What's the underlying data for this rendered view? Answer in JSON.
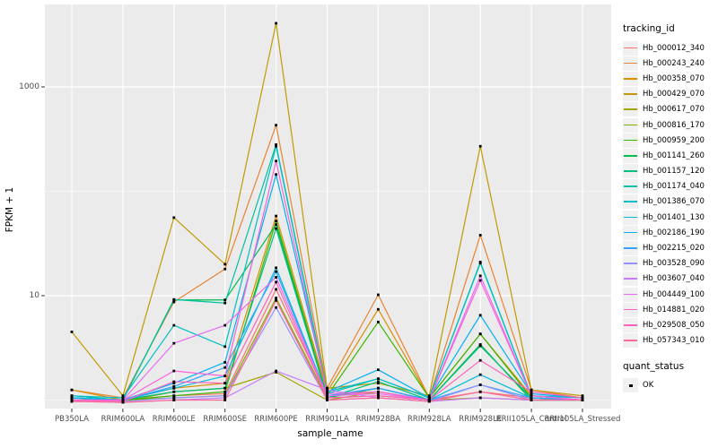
{
  "y_axis": {
    "title": "FPKM + 1"
  },
  "x_axis": {
    "title": "sample_name"
  },
  "legend": {
    "tracking_title": "tracking_id",
    "quant_title": "quant_status",
    "quant_label": "OK"
  },
  "colors": {
    "panel": "#EBEBEB",
    "grid": "#FFFFFF",
    "tick": "#333333",
    "point": "#000000",
    "tick_text": "#4D4D4D"
  },
  "chart_data": {
    "type": "line",
    "title": "",
    "xlabel": "sample_name",
    "ylabel": "FPKM + 1",
    "y_scale": "log10",
    "y_ticks": [
      10,
      1000
    ],
    "y_minor_ticks": [
      1,
      100
    ],
    "ylim": [
      0.85,
      6200
    ],
    "grid": "on",
    "legend_position": "right",
    "point_marker": "black-square",
    "x_categories": [
      "PB350LA",
      "RRIM600LA",
      "RRIM600LE",
      "RRIM600SE",
      "RRIM600PE",
      "RRIM901LA",
      "RRIM928BA",
      "RRIM928LA",
      "RRIM928LE",
      "RRII105LA_Control",
      "RRII105LA_Stressed"
    ],
    "series": [
      {
        "name": "Hb_000012_340",
        "color": "#F8766D",
        "values": [
          1.05,
          1.0,
          1.1,
          1.15,
          11.5,
          1.1,
          1.2,
          1.0,
          1.2,
          1.05,
          1.0
        ]
      },
      {
        "name": "Hb_000243_240",
        "color": "#EA8331",
        "values": [
          1.25,
          1.05,
          8.7,
          18,
          430,
          1.3,
          10.2,
          1.05,
          38,
          1.25,
          1.05
        ]
      },
      {
        "name": "Hb_000358_070",
        "color": "#D89000",
        "values": [
          1.25,
          1.0,
          1.3,
          1.45,
          58,
          1.2,
          7.4,
          1.05,
          4.3,
          1.1,
          1.0
        ]
      },
      {
        "name": "Hb_000429_070",
        "color": "#C09B00",
        "values": [
          4.5,
          1.1,
          56,
          20,
          4070,
          1.3,
          1.45,
          1.1,
          270,
          1.25,
          1.1
        ]
      },
      {
        "name": "Hb_000617_070",
        "color": "#A3A500",
        "values": [
          1.0,
          0.97,
          1.2,
          1.3,
          1.85,
          1.0,
          1.2,
          1.0,
          1.05,
          1.0,
          1.0
        ]
      },
      {
        "name": "Hb_000816_170",
        "color": "#7CAE00",
        "values": [
          1.0,
          1.0,
          1.05,
          1.1,
          9.5,
          1.05,
          1.1,
          1.0,
          3.4,
          1.0,
          1.0
        ]
      },
      {
        "name": "Hb_000959_200",
        "color": "#39B600",
        "values": [
          1.0,
          1.0,
          1.1,
          1.2,
          52,
          1.1,
          5.6,
          1.05,
          4.3,
          1.05,
          1.0
        ]
      },
      {
        "name": "Hb_001141_260",
        "color": "#00BB4E",
        "values": [
          1.05,
          1.0,
          9.1,
          9.1,
          48,
          1.05,
          1.3,
          1.0,
          3.4,
          1.0,
          1.0
        ]
      },
      {
        "name": "Hb_001157_120",
        "color": "#00BF7D",
        "values": [
          1.05,
          1.0,
          1.2,
          1.3,
          44,
          1.05,
          1.5,
          1.0,
          3.3,
          1.05,
          1.0
        ]
      },
      {
        "name": "Hb_001174_040",
        "color": "#00C1A3",
        "values": [
          1.1,
          1.0,
          9.2,
          8.5,
          280,
          1.2,
          1.6,
          1.05,
          21,
          1.1,
          1.0
        ]
      },
      {
        "name": "Hb_001386_070",
        "color": "#00BFC4",
        "values": [
          1.1,
          1.05,
          5.2,
          3.25,
          270,
          1.15,
          1.6,
          1.05,
          20.5,
          1.1,
          1.05
        ]
      },
      {
        "name": "Hb_001401_130",
        "color": "#00BAE0",
        "values": [
          1.05,
          1.0,
          1.3,
          1.7,
          18.5,
          1.1,
          1.3,
          1.0,
          1.75,
          1.05,
          1.0
        ]
      },
      {
        "name": "Hb_002186_190",
        "color": "#00B0F6",
        "values": [
          1.05,
          1.0,
          1.45,
          2.3,
          145,
          1.2,
          1.95,
          1.05,
          6.5,
          1.15,
          1.05
        ]
      },
      {
        "name": "Hb_002215_020",
        "color": "#35A2FF",
        "values": [
          1.0,
          1.0,
          1.35,
          2.05,
          17,
          1.1,
          1.3,
          1.0,
          1.4,
          1.05,
          1.0
        ]
      },
      {
        "name": "Hb_003528_090",
        "color": "#9590FF",
        "values": [
          1.0,
          0.97,
          1.05,
          1.1,
          7.7,
          1.0,
          1.05,
          0.97,
          1.4,
          1.0,
          1.0
        ]
      },
      {
        "name": "Hb_003607_040",
        "color": "#C77CFF",
        "values": [
          0.97,
          0.95,
          1.0,
          1.05,
          1.9,
          1.25,
          1.05,
          0.97,
          1.05,
          1.0,
          1.0
        ]
      },
      {
        "name": "Hb_004449_100",
        "color": "#E76BF3",
        "values": [
          1.0,
          1.0,
          3.5,
          5.2,
          15,
          1.1,
          1.15,
          1.0,
          15.5,
          1.1,
          1.0
        ]
      },
      {
        "name": "Hb_014881_020",
        "color": "#FA62DB",
        "values": [
          1.0,
          1.0,
          1.9,
          1.7,
          195,
          1.15,
          1.2,
          1.0,
          14,
          1.1,
          1.0
        ]
      },
      {
        "name": "Hb_029508_050",
        "color": "#FF62BC",
        "values": [
          1.0,
          0.97,
          1.5,
          1.45,
          13.5,
          1.05,
          1.1,
          1.0,
          2.4,
          1.2,
          1.05
        ]
      },
      {
        "name": "Hb_057343_010",
        "color": "#FF6A98",
        "values": [
          0.97,
          0.95,
          1.0,
          1.0,
          9.0,
          1.0,
          1.05,
          0.97,
          1.2,
          1.0,
          1.0
        ]
      }
    ]
  }
}
